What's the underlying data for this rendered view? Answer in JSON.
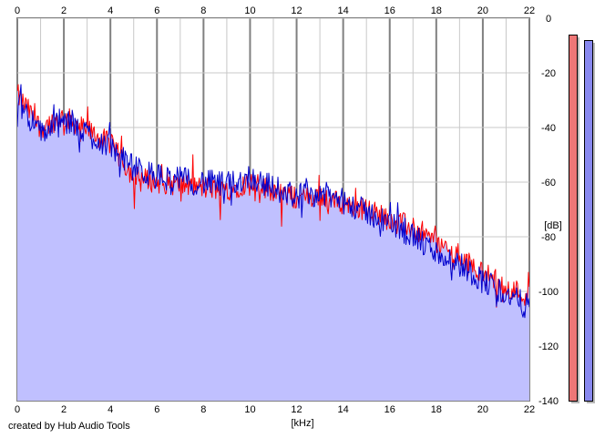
{
  "credit": "created by Hub Audio Tools",
  "colors": {
    "left_channel": "#ff0000",
    "right_channel": "#0000cc",
    "fill": "#c0c0ff",
    "grid_major": "#808080",
    "grid_minor": "#c8c8c8",
    "meter_left": "#ee7777",
    "meter_right": "#8888ee"
  },
  "chart_data": {
    "type": "line",
    "title": "",
    "xlabel": "[kHz]",
    "ylabel": "[dB]",
    "xlim": [
      0,
      22
    ],
    "ylim": [
      -140,
      0
    ],
    "x_ticks": [
      "0",
      "2",
      "4",
      "6",
      "8",
      "10",
      "12",
      "14",
      "16",
      "18",
      "20",
      "22"
    ],
    "y_ticks": [
      "0",
      "-20",
      "-40",
      "-60",
      "-80",
      "-100",
      "-120",
      "-140"
    ],
    "grid": true,
    "legend": "none",
    "x": [
      0,
      1,
      2,
      3,
      4,
      5,
      6,
      7,
      8,
      9,
      10,
      11,
      12,
      13,
      14,
      15,
      16,
      17,
      18,
      19,
      20,
      21,
      22
    ],
    "series": [
      {
        "color": "#ff0000",
        "values": [
          -28,
          -40,
          -36,
          -41,
          -46,
          -58,
          -60,
          -61,
          -62,
          -63,
          -60,
          -63,
          -66,
          -65,
          -68,
          -70,
          -73,
          -77,
          -82,
          -88,
          -93,
          -98,
          -102
        ]
      },
      {
        "color": "#0000cc",
        "values": [
          -30,
          -42,
          -38,
          -42,
          -47,
          -55,
          -58,
          -59,
          -60,
          -61,
          -58,
          -62,
          -65,
          -64,
          -67,
          -71,
          -75,
          -80,
          -86,
          -90,
          -96,
          -101,
          -106
        ]
      }
    ],
    "level_meters": [
      {
        "channel": "left",
        "peak_db": -6
      },
      {
        "channel": "right",
        "peak_db": -8
      }
    ]
  }
}
